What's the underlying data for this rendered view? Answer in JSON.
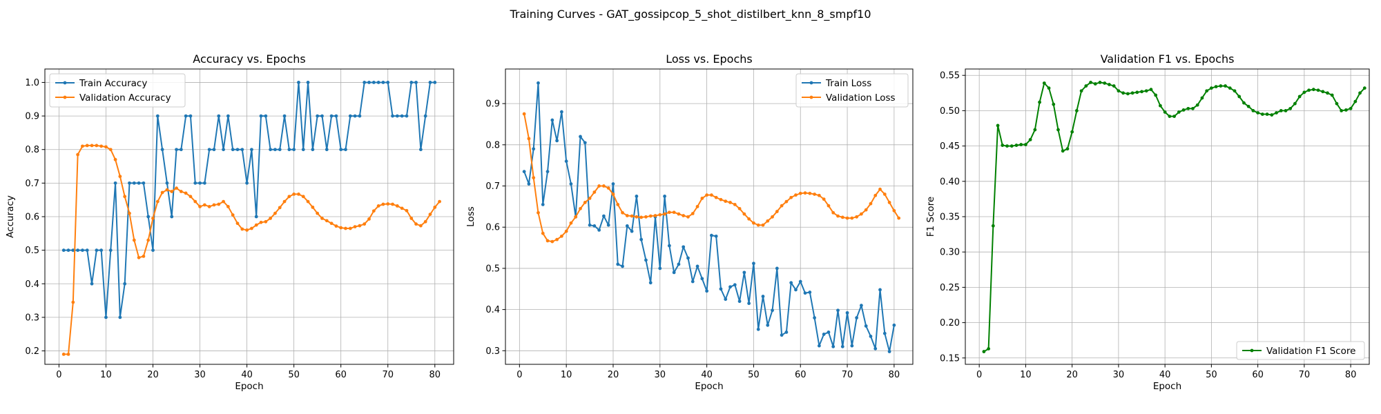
{
  "figure": {
    "suptitle": "Training Curves - GAT_gossipcop_5_shot_distilbert_knn_8_smpf10"
  },
  "colors": {
    "blue": "#1f77b4",
    "orange": "#ff7f0e",
    "green": "#008000",
    "grid": "#b0b0b0"
  },
  "chart_data": [
    {
      "type": "line",
      "title": "Accuracy vs. Epochs",
      "xlabel": "Epoch",
      "ylabel": "Accuracy",
      "xlim": [
        -3,
        84
      ],
      "ylim": [
        0.16,
        1.04
      ],
      "xticks": [
        0,
        10,
        20,
        30,
        40,
        50,
        60,
        70,
        80
      ],
      "yticks": [
        0.2,
        0.3,
        0.4,
        0.5,
        0.6,
        0.7,
        0.8,
        0.9,
        1.0
      ],
      "ytick_labels": [
        "0.2",
        "0.3",
        "0.4",
        "0.5",
        "0.6",
        "0.7",
        "0.8",
        "0.9",
        "1.0"
      ],
      "grid": true,
      "legend": "top-left",
      "series": [
        {
          "name": "Train Accuracy",
          "color": "#1f77b4",
          "values": [
            0.5,
            0.5,
            0.5,
            0.5,
            0.5,
            0.5,
            0.4,
            0.5,
            0.5,
            0.3,
            0.5,
            0.7,
            0.3,
            0.4,
            0.7,
            0.7,
            0.7,
            0.7,
            0.6,
            0.5,
            0.9,
            0.8,
            0.7,
            0.6,
            0.8,
            0.8,
            0.9,
            0.9,
            0.7,
            0.7,
            0.7,
            0.8,
            0.8,
            0.9,
            0.8,
            0.9,
            0.8,
            0.8,
            0.8,
            0.7,
            0.8,
            0.6,
            0.9,
            0.9,
            0.8,
            0.8,
            0.8,
            0.9,
            0.8,
            0.8,
            1.0,
            0.8,
            1.0,
            0.8,
            0.9,
            0.9,
            0.8,
            0.9,
            0.9,
            0.8,
            0.8,
            0.9,
            0.9,
            0.9,
            1.0,
            1.0,
            1.0,
            1.0,
            1.0,
            1.0,
            0.9,
            0.9,
            0.9,
            0.9,
            1.0,
            1.0,
            0.8,
            0.9,
            1.0,
            1.0
          ]
        },
        {
          "name": "Validation Accuracy",
          "color": "#ff7f0e",
          "values": [
            0.19,
            0.19,
            0.345,
            0.785,
            0.81,
            0.812,
            0.812,
            0.812,
            0.81,
            0.808,
            0.8,
            0.77,
            0.72,
            0.66,
            0.61,
            0.53,
            0.478,
            0.482,
            0.53,
            0.595,
            0.645,
            0.672,
            0.68,
            0.675,
            0.685,
            0.675,
            0.67,
            0.66,
            0.645,
            0.63,
            0.635,
            0.63,
            0.635,
            0.637,
            0.645,
            0.63,
            0.605,
            0.58,
            0.563,
            0.56,
            0.565,
            0.575,
            0.583,
            0.585,
            0.595,
            0.61,
            0.627,
            0.645,
            0.66,
            0.667,
            0.667,
            0.66,
            0.645,
            0.628,
            0.61,
            0.595,
            0.588,
            0.58,
            0.572,
            0.567,
            0.565,
            0.565,
            0.57,
            0.573,
            0.578,
            0.593,
            0.617,
            0.632,
            0.637,
            0.638,
            0.637,
            0.632,
            0.625,
            0.618,
            0.595,
            0.578,
            0.573,
            0.585,
            0.607,
            0.628,
            0.645
          ]
        }
      ]
    },
    {
      "type": "line",
      "title": "Loss vs. Epochs",
      "xlabel": "Epoch",
      "ylabel": "Loss",
      "xlim": [
        -3,
        84
      ],
      "ylim": [
        0.267,
        0.984
      ],
      "xticks": [
        0,
        10,
        20,
        30,
        40,
        50,
        60,
        70,
        80
      ],
      "yticks": [
        0.3,
        0.4,
        0.5,
        0.6,
        0.7,
        0.8,
        0.9
      ],
      "ytick_labels": [
        "0.3",
        "0.4",
        "0.5",
        "0.6",
        "0.7",
        "0.8",
        "0.9"
      ],
      "grid": true,
      "legend": "top-right",
      "series": [
        {
          "name": "Train Loss",
          "color": "#1f77b4",
          "values": [
            0.735,
            0.705,
            0.79,
            0.95,
            0.655,
            0.735,
            0.86,
            0.81,
            0.88,
            0.76,
            0.705,
            0.625,
            0.82,
            0.805,
            0.605,
            0.603,
            0.593,
            0.627,
            0.605,
            0.705,
            0.51,
            0.505,
            0.603,
            0.59,
            0.675,
            0.57,
            0.52,
            0.465,
            0.625,
            0.5,
            0.675,
            0.555,
            0.49,
            0.51,
            0.552,
            0.525,
            0.468,
            0.505,
            0.475,
            0.445,
            0.58,
            0.578,
            0.45,
            0.425,
            0.455,
            0.46,
            0.42,
            0.49,
            0.415,
            0.512,
            0.352,
            0.432,
            0.362,
            0.398,
            0.5,
            0.338,
            0.345,
            0.465,
            0.448,
            0.468,
            0.44,
            0.442,
            0.38,
            0.312,
            0.34,
            0.345,
            0.31,
            0.398,
            0.31,
            0.392,
            0.312,
            0.38,
            0.41,
            0.36,
            0.335,
            0.305,
            0.448,
            0.342,
            0.298,
            0.362
          ]
        },
        {
          "name": "Validation Loss",
          "color": "#ff7f0e",
          "values": [
            0.875,
            0.815,
            0.72,
            0.635,
            0.585,
            0.567,
            0.565,
            0.57,
            0.578,
            0.59,
            0.61,
            0.625,
            0.645,
            0.66,
            0.67,
            0.685,
            0.7,
            0.7,
            0.695,
            0.68,
            0.655,
            0.635,
            0.628,
            0.627,
            0.625,
            0.624,
            0.625,
            0.627,
            0.628,
            0.63,
            0.632,
            0.636,
            0.636,
            0.632,
            0.628,
            0.625,
            0.633,
            0.65,
            0.67,
            0.678,
            0.678,
            0.672,
            0.667,
            0.663,
            0.66,
            0.655,
            0.645,
            0.632,
            0.62,
            0.61,
            0.605,
            0.605,
            0.615,
            0.625,
            0.638,
            0.652,
            0.662,
            0.672,
            0.678,
            0.682,
            0.683,
            0.682,
            0.68,
            0.677,
            0.668,
            0.652,
            0.635,
            0.627,
            0.624,
            0.622,
            0.622,
            0.625,
            0.632,
            0.642,
            0.657,
            0.677,
            0.692,
            0.68,
            0.66,
            0.64,
            0.622
          ]
        }
      ]
    },
    {
      "type": "line",
      "title": "Validation F1 vs. Epochs",
      "xlabel": "Epoch",
      "ylabel": "F1 Score",
      "xlim": [
        -3,
        84
      ],
      "ylim": [
        0.141,
        0.559
      ],
      "xticks": [
        0,
        10,
        20,
        30,
        40,
        50,
        60,
        70,
        80
      ],
      "yticks": [
        0.15,
        0.2,
        0.25,
        0.3,
        0.35,
        0.4,
        0.45,
        0.5,
        0.55
      ],
      "ytick_labels": [
        "0.15",
        "0.20",
        "0.25",
        "0.30",
        "0.35",
        "0.40",
        "0.45",
        "0.50",
        "0.55"
      ],
      "grid": true,
      "legend": "bottom-right",
      "series": [
        {
          "name": "Validation F1 Score",
          "color": "#008000",
          "values": [
            0.159,
            0.163,
            0.337,
            0.479,
            0.451,
            0.45,
            0.45,
            0.451,
            0.452,
            0.452,
            0.459,
            0.473,
            0.512,
            0.539,
            0.532,
            0.509,
            0.473,
            0.443,
            0.446,
            0.47,
            0.5,
            0.528,
            0.535,
            0.54,
            0.538,
            0.54,
            0.539,
            0.537,
            0.535,
            0.528,
            0.525,
            0.524,
            0.525,
            0.526,
            0.527,
            0.528,
            0.53,
            0.522,
            0.507,
            0.498,
            0.492,
            0.492,
            0.498,
            0.501,
            0.503,
            0.503,
            0.508,
            0.518,
            0.528,
            0.532,
            0.534,
            0.535,
            0.535,
            0.532,
            0.528,
            0.52,
            0.511,
            0.506,
            0.5,
            0.497,
            0.495,
            0.495,
            0.494,
            0.497,
            0.5,
            0.5,
            0.503,
            0.51,
            0.52,
            0.526,
            0.529,
            0.53,
            0.529,
            0.527,
            0.525,
            0.522,
            0.51,
            0.5,
            0.501,
            0.503,
            0.513,
            0.525,
            0.532
          ]
        }
      ]
    }
  ]
}
